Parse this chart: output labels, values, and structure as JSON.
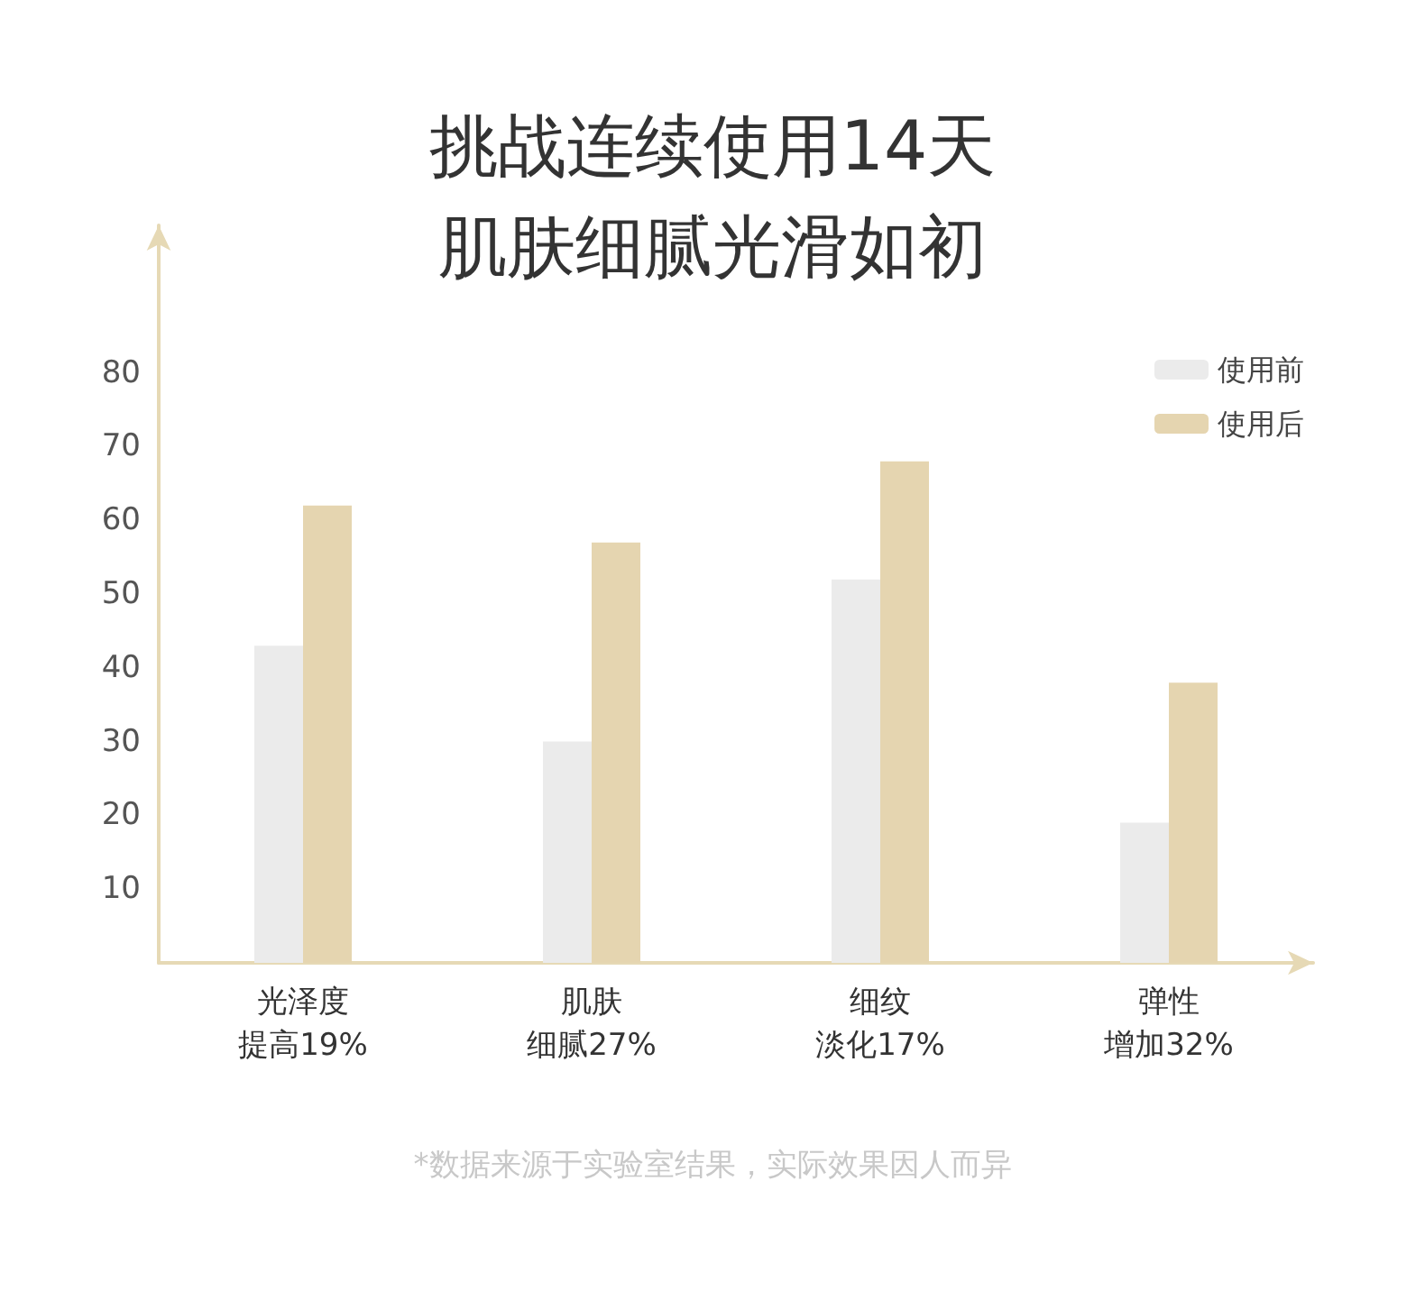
{
  "chart_data": {
    "type": "bar",
    "title": "挑战连续使用14天肌肤细腻光滑如初",
    "categories": [
      "光泽度提高19%",
      "肌肤细腻27%",
      "细纹淡化17%",
      "弹性增加32%"
    ],
    "series": [
      {
        "name": "使用前",
        "color": "#ebebeb",
        "values": [
          43,
          30,
          52,
          19
        ]
      },
      {
        "name": "使用后",
        "color": "#e5d5b0",
        "values": [
          62,
          57,
          68,
          38
        ]
      }
    ],
    "ylim": [
      0,
      100
    ],
    "yticks": [
      10,
      20,
      30,
      40,
      50,
      60,
      70,
      80
    ],
    "grid": false,
    "legend": "top right",
    "annotations": [
      "*数据来源于实验室结果，实际效果因人而异"
    ]
  }
}
